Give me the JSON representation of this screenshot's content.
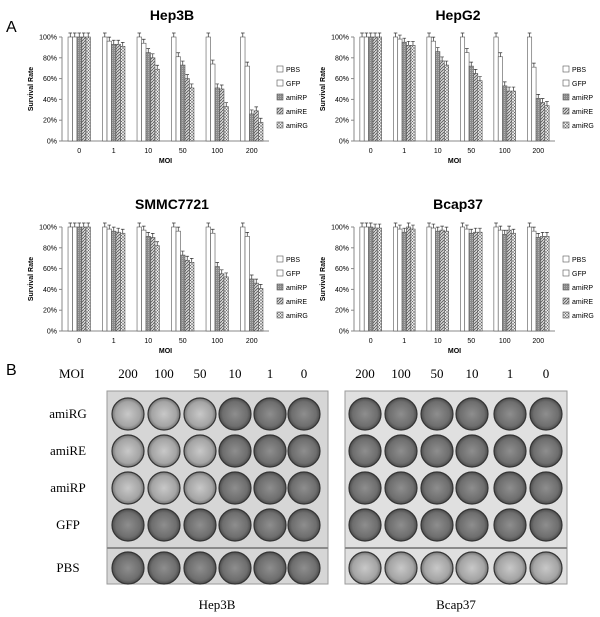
{
  "panel_a_label": "A",
  "panel_b_label": "B",
  "chart_data": [
    {
      "type": "bar",
      "title": "Hep3B",
      "xlabel": "MOI",
      "ylabel": "Survival Rate",
      "categories": [
        "0",
        "1",
        "10",
        "50",
        "100",
        "200"
      ],
      "ylim": [
        0,
        100
      ],
      "yticks": [
        "0%",
        "20%",
        "40%",
        "60%",
        "80%",
        "100%"
      ],
      "legend_position": "right",
      "series": [
        {
          "name": "PBS",
          "values": [
            100,
            100,
            100,
            100,
            100,
            100
          ]
        },
        {
          "name": "GFP",
          "values": [
            100,
            96,
            94,
            81,
            74,
            72
          ]
        },
        {
          "name": "amiRP",
          "values": [
            100,
            93,
            85,
            73,
            51,
            26
          ]
        },
        {
          "name": "amiRE",
          "values": [
            100,
            93,
            80,
            60,
            50,
            29
          ]
        },
        {
          "name": "amiRG",
          "values": [
            100,
            91,
            69,
            51,
            33,
            18
          ]
        }
      ]
    },
    {
      "type": "bar",
      "title": "HepG2",
      "xlabel": "MOI",
      "ylabel": "Survival Rate",
      "categories": [
        "0",
        "1",
        "10",
        "50",
        "100",
        "200"
      ],
      "ylim": [
        0,
        100
      ],
      "yticks": [
        "0%",
        "20%",
        "40%",
        "60%",
        "80%",
        "100%"
      ],
      "legend_position": "right",
      "series": [
        {
          "name": "PBS",
          "values": [
            100,
            100,
            100,
            100,
            100,
            100
          ]
        },
        {
          "name": "GFP",
          "values": [
            100,
            98,
            96,
            85,
            81,
            71
          ]
        },
        {
          "name": "amiRP",
          "values": [
            100,
            95,
            86,
            72,
            53,
            41
          ]
        },
        {
          "name": "amiRE",
          "values": [
            100,
            92,
            77,
            65,
            48,
            37
          ]
        },
        {
          "name": "amiRG",
          "values": [
            100,
            92,
            73,
            58,
            48,
            34
          ]
        }
      ]
    },
    {
      "type": "bar",
      "title": "SMMC7721",
      "xlabel": "MOI",
      "ylabel": "Survival Rate",
      "categories": [
        "0",
        "1",
        "10",
        "50",
        "100",
        "200"
      ],
      "ylim": [
        0,
        100
      ],
      "yticks": [
        "0%",
        "20%",
        "40%",
        "60%",
        "80%",
        "100%"
      ],
      "legend_position": "right",
      "series": [
        {
          "name": "PBS",
          "values": [
            100,
            100,
            100,
            100,
            100,
            100
          ]
        },
        {
          "name": "GFP",
          "values": [
            100,
            98,
            97,
            96,
            94,
            91
          ]
        },
        {
          "name": "amiRP",
          "values": [
            100,
            96,
            91,
            73,
            62,
            50
          ]
        },
        {
          "name": "amiRE",
          "values": [
            100,
            95,
            90,
            68,
            55,
            46
          ]
        },
        {
          "name": "amiRG",
          "values": [
            100,
            94,
            82,
            66,
            52,
            41
          ]
        }
      ]
    },
    {
      "type": "bar",
      "title": "Bcap37",
      "xlabel": "MOI",
      "ylabel": "Survival Rate",
      "categories": [
        "0",
        "1",
        "10",
        "50",
        "100",
        "200"
      ],
      "ylim": [
        0,
        100
      ],
      "yticks": [
        "0%",
        "20%",
        "40%",
        "60%",
        "80%",
        "100%"
      ],
      "legend_position": "right",
      "series": [
        {
          "name": "PBS",
          "values": [
            100,
            100,
            100,
            100,
            100,
            100
          ]
        },
        {
          "name": "GFP",
          "values": [
            100,
            98,
            99,
            98,
            97,
            96
          ]
        },
        {
          "name": "amiRP",
          "values": [
            100,
            95,
            96,
            94,
            93,
            90
          ]
        },
        {
          "name": "amiRE",
          "values": [
            99,
            100,
            97,
            95,
            97,
            91
          ]
        },
        {
          "name": "amiRG",
          "values": [
            99,
            98,
            96,
            95,
            94,
            91
          ]
        }
      ]
    }
  ],
  "plates": {
    "moi_header_label": "MOI",
    "moi_values": [
      "200",
      "100",
      "50",
      "10",
      "1",
      "0"
    ],
    "row_labels": [
      "amiRG",
      "amiRE",
      "amiRP",
      "GFP",
      "PBS"
    ],
    "captions": [
      "Hep3B",
      "Bcap37"
    ]
  }
}
